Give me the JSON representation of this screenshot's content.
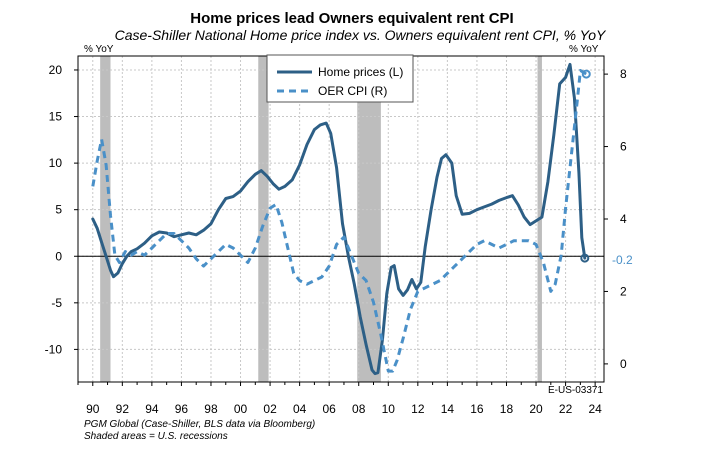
{
  "chart_data": {
    "type": "line",
    "title": "Home prices lead Owners equivalent rent CPI",
    "subtitle": "Case-Shiller National Home price index vs. Owners equivalent rent CPI, % YoY",
    "left_axis_unit": "% YoY",
    "right_axis_unit": "% YoY",
    "x_range": [
      1989.0,
      2024.6
    ],
    "x_tick_values": [
      1990,
      1992,
      1994,
      1996,
      1998,
      2000,
      2002,
      2004,
      2006,
      2008,
      2010,
      2012,
      2014,
      2016,
      2018,
      2020,
      2022,
      2024
    ],
    "x_tick_labels": [
      "90",
      "92",
      "94",
      "96",
      "98",
      "00",
      "02",
      "04",
      "06",
      "08",
      "10",
      "12",
      "14",
      "16",
      "18",
      "20",
      "22",
      "24"
    ],
    "ylim_left": [
      -13.5,
      21.5
    ],
    "yticks_left": [
      -10,
      -5,
      0,
      5,
      10,
      15,
      20
    ],
    "ylim_right": [
      -0.5,
      8.5
    ],
    "yticks_right": [
      0,
      2,
      4,
      6,
      8
    ],
    "grid": true,
    "legend_position": "top-center",
    "colors": {
      "home": "#2d5f86",
      "oer": "#4a90c8",
      "recession": "#bdbdbd"
    },
    "recessions": [
      [
        1990.5,
        1991.2
      ],
      [
        2001.2,
        2001.9
      ],
      [
        2007.9,
        2009.5
      ],
      [
        2020.1,
        2020.4
      ]
    ],
    "series": [
      {
        "name": "Home prices (L)",
        "axis": "left",
        "style": "solid",
        "points": [
          [
            1990.0,
            4.0
          ],
          [
            1990.3,
            3.0
          ],
          [
            1990.6,
            1.5
          ],
          [
            1990.9,
            0.0
          ],
          [
            1991.2,
            -1.5
          ],
          [
            1991.4,
            -2.2
          ],
          [
            1991.7,
            -1.8
          ],
          [
            1992.0,
            -0.8
          ],
          [
            1992.3,
            0.0
          ],
          [
            1992.6,
            0.5
          ],
          [
            1993.0,
            0.8
          ],
          [
            1993.5,
            1.4
          ],
          [
            1994.0,
            2.2
          ],
          [
            1994.5,
            2.6
          ],
          [
            1995.0,
            2.5
          ],
          [
            1995.5,
            2.1
          ],
          [
            1996.0,
            2.3
          ],
          [
            1996.5,
            2.5
          ],
          [
            1997.0,
            2.3
          ],
          [
            1997.5,
            2.8
          ],
          [
            1998.0,
            3.5
          ],
          [
            1998.5,
            5.0
          ],
          [
            1999.0,
            6.2
          ],
          [
            1999.5,
            6.4
          ],
          [
            2000.0,
            7.0
          ],
          [
            2000.5,
            8.0
          ],
          [
            2001.0,
            8.8
          ],
          [
            2001.4,
            9.2
          ],
          [
            2001.8,
            8.6
          ],
          [
            2002.2,
            7.8
          ],
          [
            2002.6,
            7.2
          ],
          [
            2003.0,
            7.5
          ],
          [
            2003.5,
            8.2
          ],
          [
            2004.0,
            9.8
          ],
          [
            2004.5,
            12.0
          ],
          [
            2005.0,
            13.6
          ],
          [
            2005.4,
            14.1
          ],
          [
            2005.8,
            14.3
          ],
          [
            2006.1,
            13.2
          ],
          [
            2006.5,
            9.5
          ],
          [
            2006.9,
            3.5
          ],
          [
            2007.3,
            0.0
          ],
          [
            2007.7,
            -3.0
          ],
          [
            2008.1,
            -6.5
          ],
          [
            2008.5,
            -9.5
          ],
          [
            2008.9,
            -12.2
          ],
          [
            2009.1,
            -12.6
          ],
          [
            2009.3,
            -12.5
          ],
          [
            2009.6,
            -9.0
          ],
          [
            2009.9,
            -4.0
          ],
          [
            2010.2,
            -1.2
          ],
          [
            2010.4,
            -1.0
          ],
          [
            2010.7,
            -3.5
          ],
          [
            2011.0,
            -4.2
          ],
          [
            2011.3,
            -3.6
          ],
          [
            2011.6,
            -2.5
          ],
          [
            2011.9,
            -3.5
          ],
          [
            2012.2,
            -2.8
          ],
          [
            2012.5,
            1.0
          ],
          [
            2012.9,
            5.0
          ],
          [
            2013.3,
            8.5
          ],
          [
            2013.6,
            10.5
          ],
          [
            2013.9,
            10.9
          ],
          [
            2014.3,
            10.0
          ],
          [
            2014.6,
            6.5
          ],
          [
            2015.0,
            4.5
          ],
          [
            2015.5,
            4.6
          ],
          [
            2016.0,
            5.0
          ],
          [
            2016.5,
            5.3
          ],
          [
            2017.0,
            5.6
          ],
          [
            2017.5,
            6.0
          ],
          [
            2018.0,
            6.3
          ],
          [
            2018.4,
            6.5
          ],
          [
            2018.8,
            5.5
          ],
          [
            2019.2,
            4.2
          ],
          [
            2019.6,
            3.4
          ],
          [
            2020.0,
            3.8
          ],
          [
            2020.4,
            4.2
          ],
          [
            2020.8,
            8.0
          ],
          [
            2021.2,
            13.0
          ],
          [
            2021.6,
            18.5
          ],
          [
            2022.0,
            19.2
          ],
          [
            2022.3,
            20.6
          ],
          [
            2022.6,
            17.0
          ],
          [
            2022.9,
            9.0
          ],
          [
            2023.1,
            2.0
          ],
          [
            2023.3,
            -0.2
          ]
        ]
      },
      {
        "name": "OER CPI (R)",
        "axis": "right",
        "style": "dashed",
        "points": [
          [
            1990.0,
            4.9
          ],
          [
            1990.3,
            5.6
          ],
          [
            1990.6,
            6.2
          ],
          [
            1990.9,
            5.5
          ],
          [
            1991.2,
            4.1
          ],
          [
            1991.5,
            3.0
          ],
          [
            1991.8,
            2.8
          ],
          [
            1992.2,
            3.1
          ],
          [
            1992.6,
            3.0
          ],
          [
            1993.0,
            3.1
          ],
          [
            1993.5,
            3.0
          ],
          [
            1994.0,
            3.2
          ],
          [
            1994.5,
            3.4
          ],
          [
            1995.0,
            3.6
          ],
          [
            1995.5,
            3.6
          ],
          [
            1996.0,
            3.4
          ],
          [
            1996.5,
            3.2
          ],
          [
            1997.0,
            2.9
          ],
          [
            1997.5,
            2.7
          ],
          [
            1998.0,
            2.9
          ],
          [
            1998.5,
            3.1
          ],
          [
            1999.0,
            3.3
          ],
          [
            1999.5,
            3.2
          ],
          [
            2000.0,
            3.0
          ],
          [
            2000.5,
            2.8
          ],
          [
            2001.0,
            3.2
          ],
          [
            2001.5,
            3.8
          ],
          [
            2002.0,
            4.3
          ],
          [
            2002.4,
            4.4
          ],
          [
            2002.8,
            3.9
          ],
          [
            2003.2,
            3.2
          ],
          [
            2003.6,
            2.5
          ],
          [
            2004.0,
            2.3
          ],
          [
            2004.5,
            2.2
          ],
          [
            2005.0,
            2.3
          ],
          [
            2005.5,
            2.4
          ],
          [
            2006.0,
            2.7
          ],
          [
            2006.5,
            3.3
          ],
          [
            2007.0,
            3.5
          ],
          [
            2007.5,
            3.0
          ],
          [
            2008.0,
            2.5
          ],
          [
            2008.5,
            2.3
          ],
          [
            2009.0,
            1.7
          ],
          [
            2009.5,
            0.8
          ],
          [
            2010.0,
            -0.2
          ],
          [
            2010.3,
            -0.2
          ],
          [
            2010.6,
            0.1
          ],
          [
            2011.0,
            0.7
          ],
          [
            2011.5,
            1.5
          ],
          [
            2012.0,
            2.0
          ],
          [
            2012.5,
            2.1
          ],
          [
            2013.0,
            2.2
          ],
          [
            2013.5,
            2.3
          ],
          [
            2014.0,
            2.5
          ],
          [
            2014.5,
            2.7
          ],
          [
            2015.0,
            2.9
          ],
          [
            2015.5,
            3.1
          ],
          [
            2016.0,
            3.3
          ],
          [
            2016.5,
            3.4
          ],
          [
            2017.0,
            3.3
          ],
          [
            2017.5,
            3.2
          ],
          [
            2018.0,
            3.3
          ],
          [
            2018.5,
            3.4
          ],
          [
            2019.0,
            3.4
          ],
          [
            2019.5,
            3.4
          ],
          [
            2020.0,
            3.3
          ],
          [
            2020.5,
            2.8
          ],
          [
            2021.0,
            2.0
          ],
          [
            2021.3,
            2.2
          ],
          [
            2021.7,
            3.0
          ],
          [
            2022.0,
            4.3
          ],
          [
            2022.4,
            5.8
          ],
          [
            2022.8,
            7.3
          ],
          [
            2023.0,
            8.1
          ],
          [
            2023.4,
            8.0
          ]
        ]
      }
    ],
    "end_label": "-0.2",
    "source_note": "PGM Global (Case-Shiller, BLS data via Bloomberg)",
    "recession_note": "Shaded areas = U.S. recessions",
    "chart_code": "E-US-03371"
  }
}
